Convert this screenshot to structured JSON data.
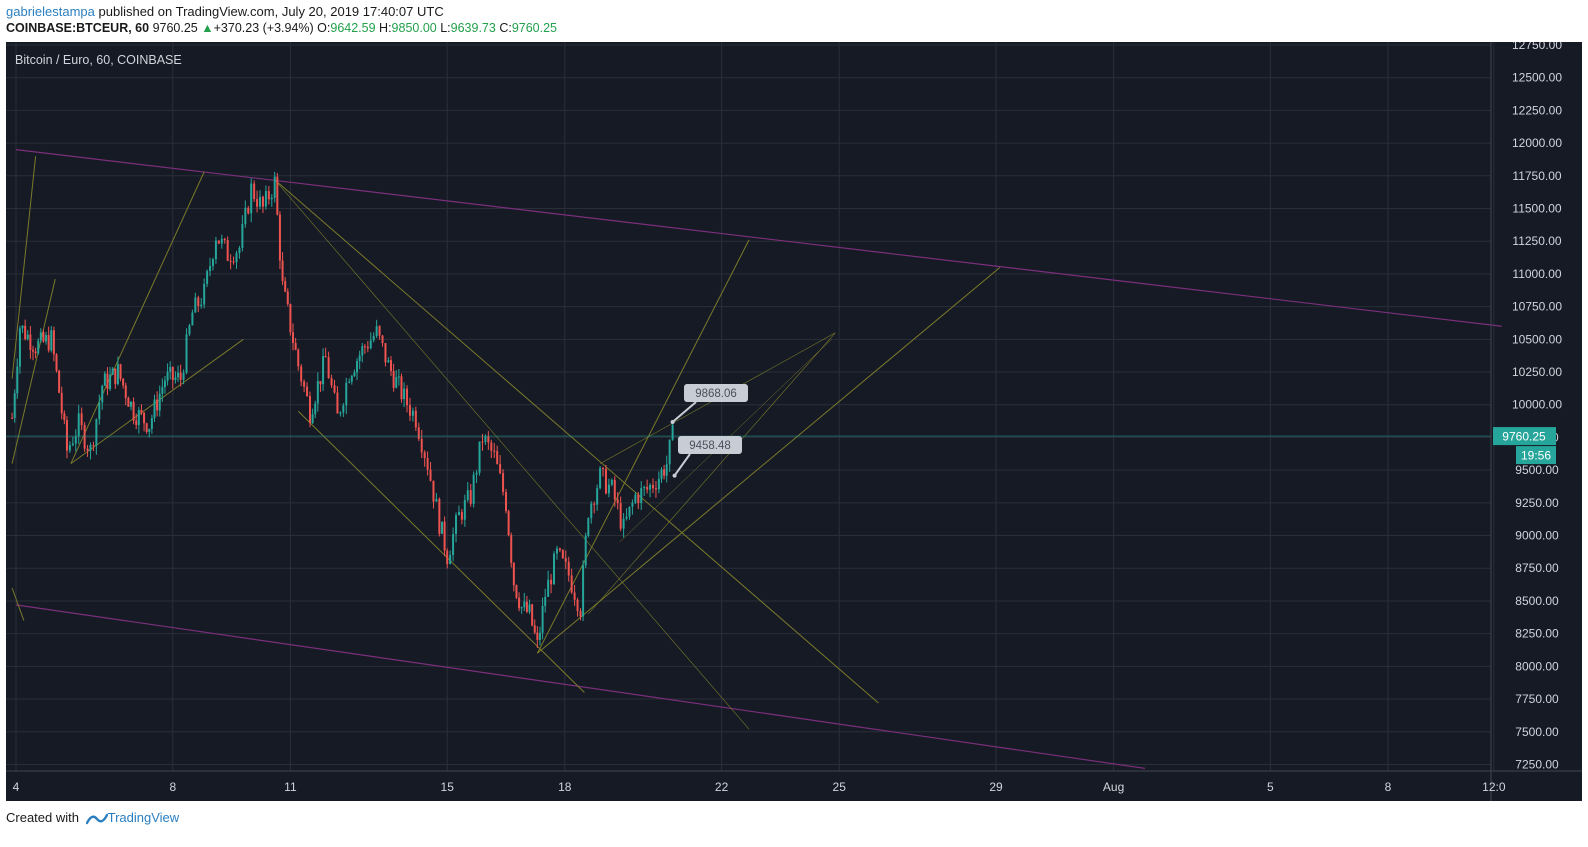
{
  "header": {
    "author": "gabrielestampa",
    "published_text": " published on TradingView.com, July 20, 2019 17:40:07 UTC",
    "symbol": "COINBASE:BTCEUR, 60",
    "last": "9760.25",
    "change": "+370.23 (+3.94%)",
    "o_label": "O:",
    "o_value": "9642.59",
    "h_label": "H:",
    "h_value": "9850.00",
    "l_label": "L:",
    "l_value": "9639.73",
    "c_label": "C:",
    "c_value": "9760.25",
    "up_arrow": "▲"
  },
  "footer": {
    "created_with": "Created with",
    "brand": "TradingView"
  },
  "colors": {
    "background": "#161a25",
    "grid": "#2a2e39",
    "up": "#26a69a",
    "down": "#ef5350",
    "channel": "#7b2f7b",
    "fib": "#7a7a2a",
    "price_tag": "#26a69a"
  },
  "chart_data": {
    "type": "candlestick",
    "title": "Bitcoin / Euro, 60, COINBASE",
    "ylim": [
      7200,
      12750
    ],
    "y_ticks": [
      "12750.00",
      "12500.00",
      "12250.00",
      "12000.00",
      "11750.00",
      "11500.00",
      "11250.00",
      "11000.00",
      "10750.00",
      "10500.00",
      "10250.00",
      "10000.00",
      "9750.00",
      "9500.00",
      "9250.00",
      "9000.00",
      "8750.00",
      "8500.00",
      "8250.00",
      "8000.00",
      "7750.00",
      "7500.00",
      "7250.00"
    ],
    "x_ticks": [
      "4",
      "8",
      "11",
      "15",
      "18",
      "22",
      "25",
      "29",
      "Aug",
      "5",
      "8",
      "12:0"
    ],
    "last_price_label": "9760.25",
    "countdown_label": "19:56",
    "last_price": 9760.25,
    "annotations": [
      {
        "text": "9868.06",
        "day": 20.75,
        "price": 9868.06
      },
      {
        "text": "9458.48",
        "day": 20.8,
        "price": 9458.48
      }
    ],
    "price_path": [
      {
        "day": 3.9,
        "price": 9900
      },
      {
        "day": 4.1,
        "price": 10600
      },
      {
        "day": 4.5,
        "price": 10450
      },
      {
        "day": 4.9,
        "price": 10500
      },
      {
        "day": 5.1,
        "price": 10100
      },
      {
        "day": 5.3,
        "price": 9650
      },
      {
        "day": 5.6,
        "price": 9850
      },
      {
        "day": 5.9,
        "price": 9650
      },
      {
        "day": 6.2,
        "price": 10150
      },
      {
        "day": 6.6,
        "price": 10250
      },
      {
        "day": 7.0,
        "price": 9950
      },
      {
        "day": 7.4,
        "price": 9850
      },
      {
        "day": 7.8,
        "price": 10200
      },
      {
        "day": 8.2,
        "price": 10200
      },
      {
        "day": 8.5,
        "price": 10700
      },
      {
        "day": 8.8,
        "price": 10850
      },
      {
        "day": 9.1,
        "price": 11300
      },
      {
        "day": 9.4,
        "price": 11150
      },
      {
        "day": 9.7,
        "price": 11200
      },
      {
        "day": 10.0,
        "price": 11650
      },
      {
        "day": 10.3,
        "price": 11500
      },
      {
        "day": 10.6,
        "price": 11700
      },
      {
        "day": 10.8,
        "price": 10900
      },
      {
        "day": 11.0,
        "price": 10600
      },
      {
        "day": 11.2,
        "price": 10300
      },
      {
        "day": 11.5,
        "price": 9950
      },
      {
        "day": 11.9,
        "price": 10350
      },
      {
        "day": 12.2,
        "price": 9900
      },
      {
        "day": 12.5,
        "price": 10250
      },
      {
        "day": 12.9,
        "price": 10450
      },
      {
        "day": 13.2,
        "price": 10550
      },
      {
        "day": 13.5,
        "price": 10300
      },
      {
        "day": 13.9,
        "price": 10050
      },
      {
        "day": 14.2,
        "price": 9900
      },
      {
        "day": 14.5,
        "price": 9550
      },
      {
        "day": 14.8,
        "price": 9100
      },
      {
        "day": 15.0,
        "price": 8850
      },
      {
        "day": 15.3,
        "price": 9150
      },
      {
        "day": 15.6,
        "price": 9300
      },
      {
        "day": 15.9,
        "price": 9750
      },
      {
        "day": 16.2,
        "price": 9600
      },
      {
        "day": 16.5,
        "price": 9250
      },
      {
        "day": 16.7,
        "price": 8650
      },
      {
        "day": 16.9,
        "price": 8450
      },
      {
        "day": 17.1,
        "price": 8400
      },
      {
        "day": 17.3,
        "price": 8150
      },
      {
        "day": 17.5,
        "price": 8550
      },
      {
        "day": 17.8,
        "price": 8850
      },
      {
        "day": 18.1,
        "price": 8700
      },
      {
        "day": 18.4,
        "price": 8450
      },
      {
        "day": 18.6,
        "price": 9200
      },
      {
        "day": 18.9,
        "price": 9450
      },
      {
        "day": 19.2,
        "price": 9350
      },
      {
        "day": 19.5,
        "price": 9050
      },
      {
        "day": 19.8,
        "price": 9300
      },
      {
        "day": 20.1,
        "price": 9350
      },
      {
        "day": 20.4,
        "price": 9450
      },
      {
        "day": 20.6,
        "price": 9550
      },
      {
        "day": 20.75,
        "price": 9760
      }
    ]
  }
}
